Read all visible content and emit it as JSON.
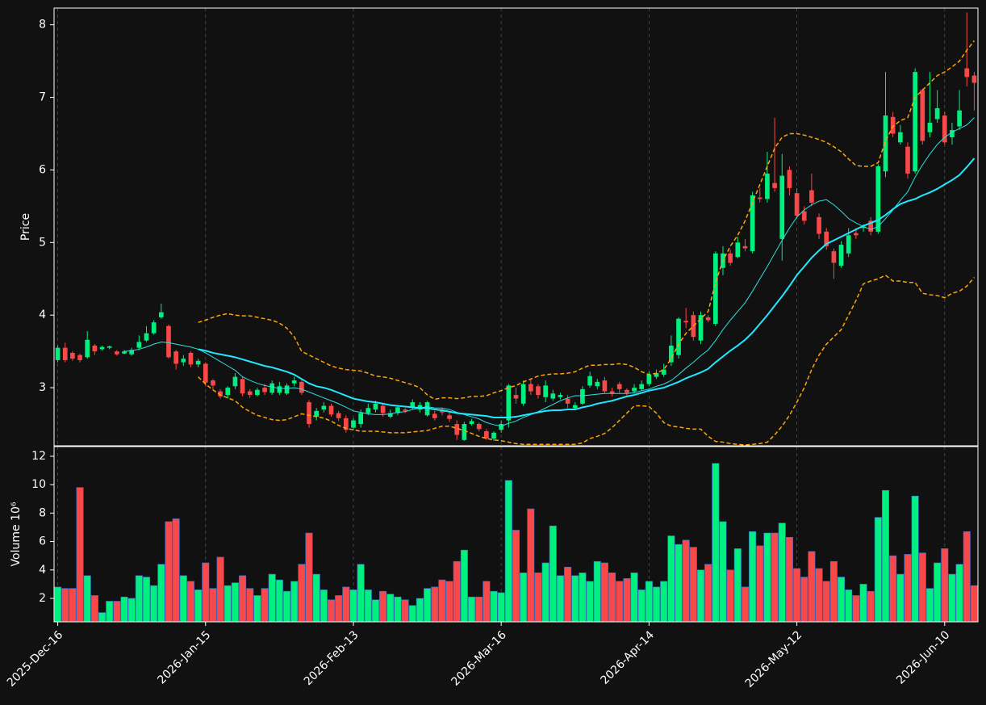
{
  "chart_data": {
    "type": "candlestick",
    "categories": [
      "2025-Dec-16",
      null,
      null,
      null,
      null,
      null,
      null,
      null,
      null,
      null,
      null,
      null,
      null,
      null,
      null,
      null,
      null,
      null,
      null,
      null,
      "2026-Jan-15",
      null,
      null,
      null,
      null,
      null,
      null,
      null,
      null,
      null,
      null,
      null,
      null,
      null,
      null,
      null,
      null,
      null,
      null,
      null,
      "2026-Feb-13",
      null,
      null,
      null,
      null,
      null,
      null,
      null,
      null,
      null,
      null,
      null,
      null,
      null,
      null,
      null,
      null,
      null,
      null,
      null,
      "2026-Mar-16",
      null,
      null,
      null,
      null,
      null,
      null,
      null,
      null,
      null,
      null,
      null,
      null,
      null,
      null,
      null,
      null,
      null,
      null,
      null,
      "2026-Apr-14",
      null,
      null,
      null,
      null,
      null,
      null,
      null,
      null,
      null,
      null,
      null,
      null,
      null,
      null,
      null,
      null,
      null,
      null,
      null,
      "2026-May-12",
      null,
      null,
      null,
      null,
      null,
      null,
      null,
      null,
      null,
      null,
      null,
      null,
      null,
      null,
      null,
      null,
      null,
      null,
      null,
      "2026-Jun-10",
      null,
      null,
      null,
      null
    ],
    "open": [
      3.38,
      3.55,
      3.48,
      3.45,
      3.42,
      3.58,
      3.53,
      3.55,
      3.5,
      3.47,
      3.46,
      3.55,
      3.65,
      3.75,
      3.97,
      3.85,
      3.5,
      3.35,
      3.48,
      3.32,
      3.33,
      3.1,
      2.95,
      2.9,
      3.02,
      3.12,
      2.95,
      2.9,
      3.0,
      2.93,
      2.93,
      2.92,
      3.06,
      3.08,
      2.8,
      2.6,
      2.7,
      2.75,
      2.65,
      2.58,
      2.45,
      2.5,
      2.65,
      2.7,
      2.75,
      2.6,
      2.65,
      2.7,
      2.73,
      2.7,
      2.62,
      2.64,
      2.7,
      2.62,
      2.5,
      2.28,
      2.5,
      2.5,
      2.4,
      2.3,
      2.42,
      2.55,
      2.9,
      2.78,
      3.05,
      3.02,
      2.87,
      2.85,
      2.87,
      2.85,
      2.72,
      2.78,
      3.03,
      3.02,
      3.1,
      2.95,
      3.05,
      2.97,
      2.95,
      2.98,
      3.05,
      3.15,
      3.18,
      3.35,
      3.45,
      3.92,
      4.0,
      3.65,
      3.97,
      3.88,
      4.65,
      4.85,
      4.8,
      4.95,
      4.88,
      5.62,
      5.6,
      5.82,
      5.05,
      6.0,
      5.68,
      5.43,
      5.72,
      5.35,
      5.15,
      4.88,
      4.68,
      4.85,
      5.13,
      5.2,
      5.3,
      5.15,
      5.98,
      6.73,
      6.38,
      6.32,
      5.98,
      7.1,
      6.52,
      6.7,
      6.75,
      6.45,
      6.6,
      7.4,
      7.3
    ],
    "high": [
      3.58,
      3.62,
      3.5,
      3.47,
      3.78,
      3.6,
      3.58,
      3.58,
      3.52,
      3.52,
      3.55,
      3.72,
      3.85,
      3.93,
      4.16,
      3.87,
      3.52,
      3.45,
      3.5,
      3.4,
      3.35,
      3.12,
      2.98,
      3.02,
      3.2,
      3.15,
      2.98,
      3.0,
      3.05,
      3.1,
      3.08,
      3.06,
      3.15,
      3.12,
      2.83,
      2.72,
      2.8,
      2.78,
      2.68,
      2.62,
      2.58,
      2.7,
      2.78,
      2.82,
      2.78,
      2.7,
      2.76,
      2.72,
      2.84,
      2.8,
      2.82,
      2.68,
      2.72,
      2.66,
      2.55,
      2.53,
      2.57,
      2.52,
      2.43,
      2.4,
      2.55,
      3.05,
      3.0,
      3.1,
      3.12,
      3.05,
      3.1,
      2.97,
      2.93,
      2.9,
      2.8,
      3.02,
      3.22,
      3.12,
      3.15,
      3.0,
      3.08,
      2.99,
      3.05,
      3.1,
      3.22,
      3.25,
      3.33,
      3.72,
      3.97,
      4.1,
      4.05,
      4.05,
      4.0,
      4.88,
      4.95,
      4.9,
      5.08,
      5.05,
      5.7,
      5.75,
      6.25,
      6.72,
      6.22,
      6.05,
      5.75,
      5.5,
      5.95,
      5.4,
      5.2,
      4.92,
      5.02,
      5.2,
      5.2,
      5.25,
      5.35,
      6.08,
      7.35,
      6.8,
      6.62,
      6.38,
      7.4,
      7.12,
      7.35,
      7.1,
      6.8,
      6.65,
      7.1,
      8.17,
      7.35
    ],
    "low": [
      3.35,
      3.35,
      3.37,
      3.35,
      3.4,
      3.45,
      3.51,
      3.53,
      3.44,
      3.46,
      3.44,
      3.52,
      3.63,
      3.73,
      3.95,
      3.4,
      3.25,
      3.3,
      3.28,
      3.28,
      3.02,
      2.98,
      2.85,
      2.85,
      2.98,
      2.88,
      2.86,
      2.88,
      2.9,
      2.9,
      2.9,
      2.9,
      3.02,
      2.9,
      2.45,
      2.55,
      2.66,
      2.6,
      2.54,
      2.38,
      2.42,
      2.45,
      2.62,
      2.66,
      2.6,
      2.58,
      2.62,
      2.65,
      2.7,
      2.66,
      2.6,
      2.55,
      2.62,
      2.53,
      2.28,
      2.27,
      2.48,
      2.4,
      2.28,
      2.27,
      2.38,
      2.45,
      2.78,
      2.75,
      2.9,
      2.85,
      2.8,
      2.82,
      2.84,
      2.72,
      2.7,
      2.76,
      3.0,
      2.98,
      2.92,
      2.88,
      2.93,
      2.88,
      2.92,
      2.96,
      3.02,
      3.12,
      3.15,
      3.3,
      3.4,
      3.82,
      3.65,
      3.6,
      3.9,
      3.85,
      4.55,
      4.68,
      4.78,
      4.88,
      4.85,
      5.55,
      5.55,
      5.7,
      4.75,
      5.65,
      5.33,
      5.25,
      5.5,
      5.05,
      4.9,
      4.5,
      4.65,
      4.8,
      5.05,
      5.15,
      5.1,
      5.12,
      5.9,
      6.45,
      6.35,
      5.88,
      5.95,
      6.35,
      6.45,
      6.65,
      6.35,
      6.35,
      6.55,
      7.15,
      6.82
    ],
    "close": [
      3.55,
      3.38,
      3.4,
      3.38,
      3.66,
      3.5,
      3.56,
      3.57,
      3.46,
      3.5,
      3.52,
      3.63,
      3.75,
      3.9,
      4.04,
      3.42,
      3.33,
      3.4,
      3.32,
      3.37,
      3.07,
      3.03,
      2.88,
      3.0,
      3.15,
      2.92,
      2.9,
      2.97,
      2.94,
      3.06,
      3.02,
      3.03,
      3.1,
      2.93,
      2.5,
      2.68,
      2.75,
      2.63,
      2.58,
      2.42,
      2.55,
      2.65,
      2.72,
      2.78,
      2.65,
      2.65,
      2.73,
      2.68,
      2.8,
      2.76,
      2.8,
      2.58,
      2.66,
      2.57,
      2.35,
      2.5,
      2.54,
      2.43,
      2.3,
      2.38,
      2.5,
      3.03,
      2.85,
      3.05,
      2.95,
      2.9,
      3.03,
      2.92,
      2.9,
      2.78,
      2.76,
      2.98,
      3.16,
      3.08,
      2.95,
      2.92,
      2.98,
      2.93,
      3.0,
      3.05,
      3.18,
      3.2,
      3.25,
      3.58,
      3.95,
      3.9,
      3.7,
      4.0,
      3.93,
      4.85,
      4.85,
      4.72,
      5.0,
      4.92,
      5.65,
      5.6,
      5.95,
      5.75,
      5.92,
      5.75,
      5.37,
      5.3,
      5.55,
      5.12,
      4.95,
      4.72,
      4.97,
      5.1,
      5.1,
      5.22,
      5.15,
      6.05,
      6.75,
      6.5,
      6.52,
      5.95,
      7.35,
      6.4,
      6.65,
      6.85,
      6.38,
      6.55,
      6.82,
      7.28,
      7.2
    ],
    "up_color": "#00f080",
    "down_color": "#f84848",
    "ylabel": "Price",
    "ylim": [
      2.2,
      8.23
    ],
    "yticks": [
      3,
      4,
      5,
      6,
      7,
      8
    ],
    "grid": true,
    "overlays": [
      {
        "color": "#30e0e0",
        "width": 1,
        "dashed": false,
        "values": [
          null,
          null,
          null,
          null,
          null,
          null,
          null,
          null,
          null,
          3.5,
          3.51,
          3.53,
          3.56,
          3.6,
          3.63,
          3.62,
          3.6,
          3.58,
          3.56,
          3.53,
          3.48,
          3.42,
          3.36,
          3.3,
          3.24,
          3.15,
          3.1,
          3.06,
          3.03,
          3.01,
          2.99,
          2.99,
          3.0,
          2.98,
          2.94,
          2.9,
          2.86,
          2.82,
          2.78,
          2.73,
          2.68,
          2.66,
          2.64,
          2.63,
          2.63,
          2.64,
          2.66,
          2.67,
          2.7,
          2.72,
          2.74,
          2.72,
          2.72,
          2.7,
          2.66,
          2.63,
          2.6,
          2.57,
          2.52,
          2.49,
          2.47,
          2.51,
          2.54,
          2.59,
          2.63,
          2.67,
          2.72,
          2.77,
          2.82,
          2.86,
          2.89,
          2.89,
          2.9,
          2.91,
          2.92,
          2.92,
          2.92,
          2.92,
          2.93,
          2.96,
          2.98,
          3.02,
          3.05,
          3.1,
          3.18,
          3.27,
          3.35,
          3.44,
          3.52,
          3.65,
          3.8,
          3.93,
          4.05,
          4.17,
          4.33,
          4.5,
          4.67,
          4.85,
          5.03,
          5.2,
          5.35,
          5.45,
          5.52,
          5.57,
          5.59,
          5.52,
          5.43,
          5.33,
          5.27,
          5.22,
          5.18,
          5.22,
          5.33,
          5.45,
          5.58,
          5.7,
          5.9,
          6.07,
          6.22,
          6.35,
          6.45,
          6.52,
          6.57,
          6.62,
          6.72
        ]
      },
      {
        "color": "#20e8ff",
        "width": 2,
        "dashed": false,
        "values": [
          null,
          null,
          null,
          null,
          null,
          null,
          null,
          null,
          null,
          null,
          null,
          null,
          null,
          null,
          null,
          null,
          null,
          null,
          null,
          3.53,
          3.51,
          3.48,
          3.46,
          3.44,
          3.42,
          3.39,
          3.36,
          3.33,
          3.3,
          3.28,
          3.25,
          3.22,
          3.18,
          3.12,
          3.06,
          3.02,
          3.0,
          2.97,
          2.93,
          2.89,
          2.85,
          2.83,
          2.81,
          2.8,
          2.78,
          2.76,
          2.75,
          2.74,
          2.73,
          2.72,
          2.72,
          2.7,
          2.69,
          2.67,
          2.65,
          2.64,
          2.63,
          2.62,
          2.61,
          2.59,
          2.59,
          2.59,
          2.6,
          2.62,
          2.64,
          2.66,
          2.68,
          2.69,
          2.69,
          2.7,
          2.7,
          2.73,
          2.75,
          2.78,
          2.8,
          2.82,
          2.85,
          2.88,
          2.9,
          2.93,
          2.96,
          2.98,
          3.0,
          3.04,
          3.08,
          3.13,
          3.17,
          3.21,
          3.26,
          3.35,
          3.43,
          3.51,
          3.58,
          3.66,
          3.76,
          3.88,
          4.0,
          4.13,
          4.26,
          4.4,
          4.55,
          4.67,
          4.79,
          4.89,
          4.98,
          5.03,
          5.08,
          5.13,
          5.18,
          5.23,
          5.27,
          5.31,
          5.38,
          5.46,
          5.53,
          5.57,
          5.6,
          5.65,
          5.69,
          5.74,
          5.8,
          5.86,
          5.93,
          6.04,
          6.16
        ]
      },
      {
        "color": "#ffa500",
        "width": 1.5,
        "dashed": true,
        "values": [
          null,
          null,
          null,
          null,
          null,
          null,
          null,
          null,
          null,
          null,
          null,
          null,
          null,
          null,
          null,
          null,
          null,
          null,
          null,
          3.9,
          3.93,
          3.97,
          4.0,
          4.02,
          4.0,
          3.99,
          3.99,
          3.97,
          3.95,
          3.93,
          3.89,
          3.82,
          3.7,
          3.5,
          3.45,
          3.4,
          3.35,
          3.3,
          3.27,
          3.25,
          3.24,
          3.23,
          3.2,
          3.16,
          3.15,
          3.13,
          3.1,
          3.07,
          3.04,
          3.0,
          2.9,
          2.84,
          2.86,
          2.86,
          2.85,
          2.86,
          2.88,
          2.88,
          2.89,
          2.93,
          2.96,
          3.0,
          3.03,
          3.08,
          3.12,
          3.16,
          3.18,
          3.19,
          3.19,
          3.2,
          3.22,
          3.27,
          3.31,
          3.31,
          3.32,
          3.32,
          3.33,
          3.32,
          3.28,
          3.22,
          3.18,
          3.2,
          3.25,
          3.4,
          3.6,
          3.75,
          3.85,
          3.95,
          4.05,
          4.45,
          4.75,
          4.95,
          5.1,
          5.3,
          5.55,
          5.8,
          6.05,
          6.3,
          6.45,
          6.5,
          6.5,
          6.48,
          6.45,
          6.42,
          6.38,
          6.32,
          6.25,
          6.15,
          6.06,
          6.05,
          6.05,
          6.1,
          6.4,
          6.6,
          6.68,
          6.72,
          7.0,
          7.1,
          7.2,
          7.3,
          7.35,
          7.42,
          7.5,
          7.65,
          7.78
        ]
      },
      {
        "color": "#ffa500",
        "width": 1.5,
        "dashed": true,
        "values": [
          null,
          null,
          null,
          null,
          null,
          null,
          null,
          null,
          null,
          null,
          null,
          null,
          null,
          null,
          null,
          null,
          null,
          null,
          null,
          3.15,
          3.05,
          2.97,
          2.9,
          2.86,
          2.82,
          2.73,
          2.67,
          2.62,
          2.59,
          2.56,
          2.55,
          2.56,
          2.6,
          2.64,
          2.62,
          2.6,
          2.58,
          2.54,
          2.48,
          2.44,
          2.42,
          2.4,
          2.4,
          2.4,
          2.39,
          2.38,
          2.38,
          2.38,
          2.39,
          2.4,
          2.41,
          2.44,
          2.47,
          2.47,
          2.44,
          2.41,
          2.37,
          2.33,
          2.3,
          2.28,
          2.27,
          2.25,
          2.23,
          2.22,
          2.22,
          2.22,
          2.22,
          2.22,
          2.22,
          2.22,
          2.22,
          2.24,
          2.3,
          2.33,
          2.37,
          2.45,
          2.55,
          2.65,
          2.75,
          2.75,
          2.74,
          2.65,
          2.52,
          2.47,
          2.46,
          2.44,
          2.43,
          2.43,
          2.33,
          2.26,
          2.25,
          2.23,
          2.22,
          2.21,
          2.22,
          2.23,
          2.25,
          2.35,
          2.47,
          2.62,
          2.8,
          3.0,
          3.25,
          3.45,
          3.6,
          3.7,
          3.8,
          4.0,
          4.2,
          4.43,
          4.47,
          4.5,
          4.55,
          4.47,
          4.47,
          4.45,
          4.45,
          4.3,
          4.28,
          4.27,
          4.24,
          4.3,
          4.33,
          4.4,
          4.52
        ]
      }
    ],
    "volume": {
      "ylabel": "Volume  10⁶",
      "ylim": [
        0.35,
        12.68
      ],
      "yticks": [
        2,
        4,
        6,
        8,
        10,
        12
      ],
      "values": [
        2.8,
        2.7,
        2.7,
        9.8,
        3.6,
        2.2,
        1.0,
        1.8,
        1.8,
        2.1,
        2.0,
        3.6,
        3.5,
        2.9,
        4.4,
        7.4,
        7.6,
        3.6,
        3.2,
        2.6,
        4.5,
        2.7,
        4.9,
        2.9,
        3.1,
        3.6,
        2.7,
        2.2,
        2.7,
        3.7,
        3.3,
        2.5,
        3.2,
        4.4,
        6.6,
        3.7,
        2.6,
        1.9,
        2.2,
        2.8,
        2.6,
        4.4,
        2.6,
        1.9,
        2.5,
        2.3,
        2.1,
        1.9,
        1.5,
        2.0,
        2.7,
        2.8,
        3.3,
        3.2,
        4.6,
        5.4,
        2.1,
        2.1,
        3.2,
        2.5,
        2.4,
        10.3,
        6.8,
        3.8,
        8.3,
        3.8,
        4.5,
        7.1,
        3.6,
        4.2,
        3.6,
        3.8,
        3.2,
        4.6,
        4.5,
        3.8,
        3.2,
        3.4,
        3.8,
        2.6,
        3.2,
        2.8,
        3.2,
        6.4,
        5.8,
        6.1,
        5.6,
        4.0,
        4.4,
        11.5,
        7.4,
        4.0,
        5.5,
        2.8,
        6.7,
        5.7,
        6.6,
        6.6,
        7.3,
        6.3,
        4.1,
        3.5,
        5.3,
        4.1,
        3.2,
        4.6,
        3.5,
        2.6,
        2.2,
        3.0,
        2.5,
        7.7,
        9.6,
        5.0,
        3.7,
        5.1,
        9.2,
        5.2,
        2.7,
        4.5,
        5.5,
        3.7,
        4.4,
        6.7,
        2.9
      ]
    }
  }
}
